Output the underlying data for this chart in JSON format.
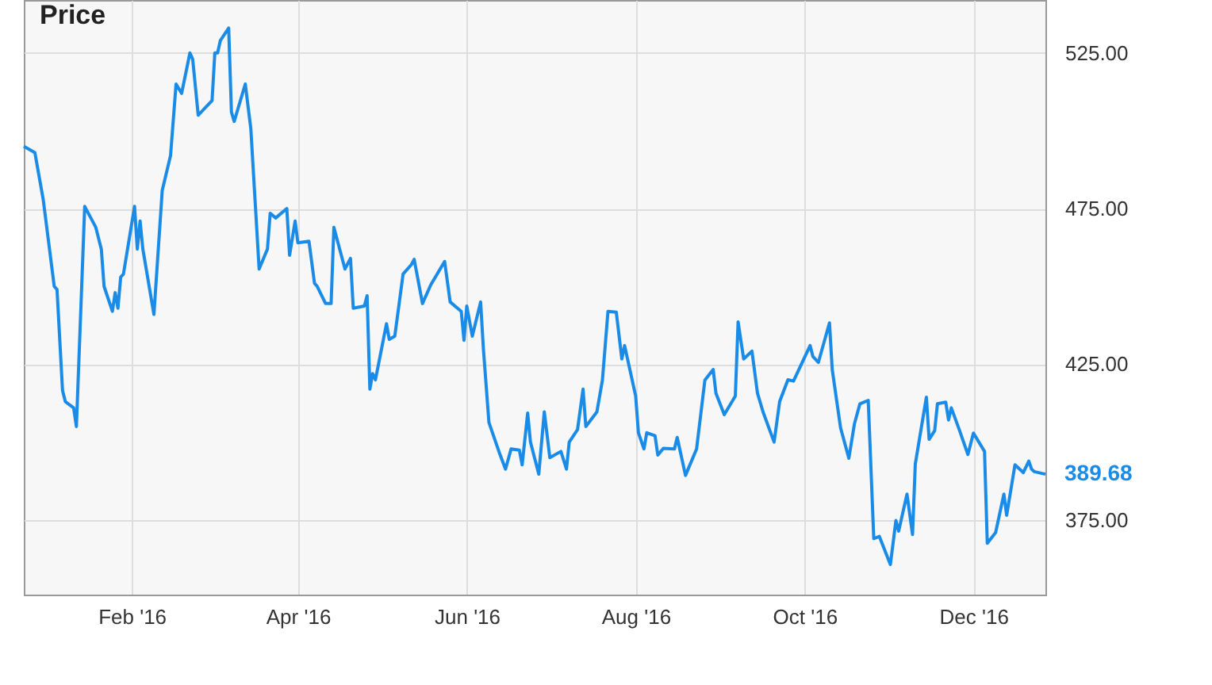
{
  "chart_data": {
    "type": "line",
    "title": "Price",
    "grid": true,
    "legend": false,
    "marker": "none",
    "line_style": "solid",
    "xlim": [
      "2015-12-24",
      "2016-12-27"
    ],
    "xticks": [
      {
        "value": "2016-02-01",
        "label": "Feb '16"
      },
      {
        "value": "2016-04-01",
        "label": "Apr '16"
      },
      {
        "value": "2016-06-01",
        "label": "Jun '16"
      },
      {
        "value": "2016-08-01",
        "label": "Aug '16"
      },
      {
        "value": "2016-10-01",
        "label": "Oct '16"
      },
      {
        "value": "2016-12-01",
        "label": "Dec '16"
      }
    ],
    "ylim": [
      351,
      542
    ],
    "yticks": [
      {
        "value": 375,
        "label": "375.00"
      },
      {
        "value": 425,
        "label": "425.00"
      },
      {
        "value": 475,
        "label": "475.00"
      },
      {
        "value": 525,
        "label": "525.00"
      }
    ],
    "annotations": [
      {
        "text": "389.68",
        "x": "2016-12-27",
        "y": 389.68
      }
    ],
    "x": [
      "2015-12-24",
      "2015-12-28",
      "2015-12-31",
      "2016-01-04",
      "2016-01-05",
      "2016-01-07",
      "2016-01-08",
      "2016-01-11",
      "2016-01-12",
      "2016-01-15",
      "2016-01-19",
      "2016-01-21",
      "2016-01-22",
      "2016-01-25",
      "2016-01-26",
      "2016-01-27",
      "2016-01-28",
      "2016-01-29",
      "2016-02-02",
      "2016-02-03",
      "2016-02-04",
      "2016-02-05",
      "2016-02-09",
      "2016-02-12",
      "2016-02-15",
      "2016-02-17",
      "2016-02-19",
      "2016-02-22",
      "2016-02-23",
      "2016-02-25",
      "2016-03-01",
      "2016-03-02",
      "2016-03-03",
      "2016-03-04",
      "2016-03-07",
      "2016-03-08",
      "2016-03-09",
      "2016-03-13",
      "2016-03-15",
      "2016-03-18",
      "2016-03-21",
      "2016-03-22",
      "2016-03-24",
      "2016-03-28",
      "2016-03-29",
      "2016-03-31",
      "2016-04-01",
      "2016-04-05",
      "2016-04-07",
      "2016-04-08",
      "2016-04-11",
      "2016-04-13",
      "2016-04-14",
      "2016-04-18",
      "2016-04-20",
      "2016-04-21",
      "2016-04-25",
      "2016-04-26",
      "2016-04-27",
      "2016-04-28",
      "2016-04-29",
      "2016-05-03",
      "2016-05-04",
      "2016-05-06",
      "2016-05-09",
      "2016-05-12",
      "2016-05-13",
      "2016-05-14",
      "2016-05-16",
      "2016-05-19",
      "2016-05-24",
      "2016-05-26",
      "2016-05-30",
      "2016-05-31",
      "2016-06-01",
      "2016-06-03",
      "2016-06-06",
      "2016-06-07",
      "2016-06-09",
      "2016-06-13",
      "2016-06-15",
      "2016-06-17",
      "2016-06-20",
      "2016-06-21",
      "2016-06-23",
      "2016-06-24",
      "2016-06-27",
      "2016-06-29",
      "2016-07-01",
      "2016-07-05",
      "2016-07-07",
      "2016-07-08",
      "2016-07-11",
      "2016-07-13",
      "2016-07-14",
      "2016-07-18",
      "2016-07-20",
      "2016-07-22",
      "2016-07-25",
      "2016-07-27",
      "2016-07-28",
      "2016-08-01",
      "2016-08-02",
      "2016-08-04",
      "2016-08-05",
      "2016-08-08",
      "2016-08-09",
      "2016-08-11",
      "2016-08-15",
      "2016-08-16",
      "2016-08-19",
      "2016-08-23",
      "2016-08-26",
      "2016-08-29",
      "2016-08-30",
      "2016-09-02",
      "2016-09-06",
      "2016-09-07",
      "2016-09-09",
      "2016-09-12",
      "2016-09-14",
      "2016-09-16",
      "2016-09-20",
      "2016-09-22",
      "2016-09-25",
      "2016-09-27",
      "2016-10-03",
      "2016-10-04",
      "2016-10-06",
      "2016-10-10",
      "2016-10-11",
      "2016-10-14",
      "2016-10-17",
      "2016-10-19",
      "2016-10-21",
      "2016-10-24",
      "2016-10-26",
      "2016-10-28",
      "2016-11-01",
      "2016-11-03",
      "2016-11-04",
      "2016-11-07",
      "2016-11-09",
      "2016-11-10",
      "2016-11-14",
      "2016-11-15",
      "2016-11-17",
      "2016-11-18",
      "2016-11-21",
      "2016-11-22",
      "2016-11-23",
      "2016-11-26",
      "2016-11-29",
      "2016-12-01",
      "2016-12-05",
      "2016-12-06",
      "2016-12-09",
      "2016-12-12",
      "2016-12-13",
      "2016-12-16",
      "2016-12-19",
      "2016-12-21",
      "2016-12-22",
      "2016-12-23",
      "2016-12-27"
    ],
    "series": [
      {
        "color": "#1a8be6",
        "values": [
          495,
          493,
          478,
          450,
          449,
          416.5,
          413,
          411,
          405,
          475.7,
          469,
          462,
          450,
          442,
          448,
          443,
          453,
          454,
          475.7,
          462,
          471,
          462,
          441,
          480.8,
          492,
          515,
          512,
          525,
          523,
          505,
          509.7,
          525,
          525,
          529,
          533,
          506,
          503,
          515,
          500.7,
          455.6,
          462,
          473.5,
          472,
          475,
          460,
          471,
          464,
          464.5,
          451,
          450,
          444.5,
          444.5,
          469,
          455.6,
          459,
          443,
          443.7,
          447,
          417,
          422,
          420,
          438,
          433,
          434,
          454,
          457,
          458.7,
          454,
          444.5,
          450.5,
          458,
          445,
          442,
          432.7,
          443.7,
          434,
          445,
          430,
          406.3,
          396,
          391.3,
          397.8,
          397.4,
          392.7,
          409.3,
          400,
          389.7,
          409.7,
          395,
          397,
          391.3,
          400,
          404,
          417,
          405,
          409.7,
          420,
          442,
          441.7,
          426.7,
          431,
          414.8,
          403,
          397.8,
          403,
          402,
          395.8,
          398,
          397.8,
          401.5,
          389.3,
          397.8,
          419.9,
          423.3,
          415.7,
          408.8,
          414.8,
          438.6,
          426.7,
          429.2,
          415.7,
          409.7,
          400,
          413,
          420,
          419.6,
          431,
          427.5,
          425.6,
          438.3,
          423.3,
          404.6,
          394.8,
          405.8,
          412.3,
          413.4,
          369,
          369.7,
          360.7,
          374.8,
          371.4,
          383.3,
          370.3,
          393,
          414.4,
          400.9,
          403.7,
          412.3,
          412.8,
          407.1,
          411,
          403.7,
          396,
          402.9,
          397,
          367.5,
          370.9,
          383.3,
          376.5,
          392.7,
          390.2,
          393.9,
          391.3,
          390.5,
          389.68
        ]
      }
    ]
  }
}
